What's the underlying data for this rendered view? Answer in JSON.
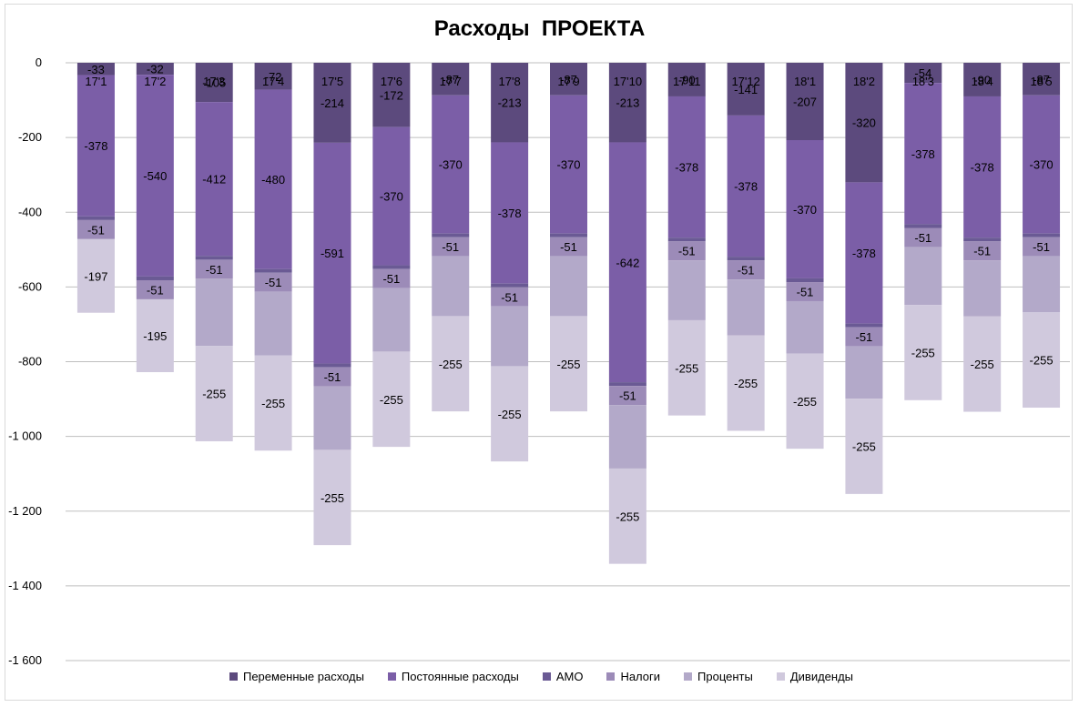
{
  "chart_data": {
    "type": "bar",
    "stacked": true,
    "title": "Расходы  ПРОЕКТА",
    "xlabel": "",
    "ylabel": "",
    "ylim": [
      -1600,
      0
    ],
    "yticks": [
      0,
      -200,
      -400,
      -600,
      -800,
      -1000,
      -1200,
      -1400,
      -1600
    ],
    "ytick_labels": [
      "0",
      "-200",
      "-400",
      "-600",
      "-800",
      "-1 000",
      "-1 200",
      "-1 400",
      "-1 600"
    ],
    "categories": [
      "17'1",
      "17'2",
      "17'3",
      "17'4",
      "17'5",
      "17'6",
      "17'7",
      "17'8",
      "17'9",
      "17'10",
      "17'11",
      "17'12",
      "18'1",
      "18'2",
      "18'3",
      "18'4",
      "18'5"
    ],
    "series": [
      {
        "name": "Переменные расходы",
        "color": "#5c4a7d",
        "values": [
          -33,
          -32,
          -105,
          -72,
          -214,
          -172,
          -87,
          -213,
          -87,
          -213,
          -90,
          -141,
          -207,
          -320,
          -54,
          -90,
          -87
        ]
      },
      {
        "name": "Постоянные расходы",
        "color": "#7b5ea7",
        "values": [
          -378,
          -540,
          -412,
          -480,
          -591,
          -370,
          -370,
          -378,
          -370,
          -642,
          -378,
          -378,
          -370,
          -378,
          -378,
          -378,
          -370
        ]
      },
      {
        "name": "АМО",
        "color": "#6a5a94",
        "values": [
          -10,
          -10,
          -10,
          -10,
          -10,
          -10,
          -10,
          -10,
          -10,
          -10,
          -10,
          -10,
          -10,
          -10,
          -10,
          -10,
          -10
        ]
      },
      {
        "name": "Налоги",
        "color": "#9c8bb8",
        "values": [
          -51,
          -51,
          -51,
          -51,
          -51,
          -51,
          -51,
          -51,
          -51,
          -51,
          -51,
          -51,
          -51,
          -51,
          -51,
          -51,
          -51
        ]
      },
      {
        "name": "Проценты",
        "color": "#b3a9c9",
        "values": [
          0,
          0,
          -180,
          -170,
          -170,
          -170,
          -160,
          -160,
          -160,
          -170,
          -160,
          -150,
          -140,
          -140,
          -155,
          -150,
          -150
        ]
      },
      {
        "name": "Дивиденды",
        "color": "#d0c9dd",
        "values": [
          -197,
          -195,
          -255,
          -255,
          -255,
          -255,
          -255,
          -255,
          -255,
          -255,
          -255,
          -255,
          -255,
          -255,
          -255,
          -255,
          -255
        ]
      }
    ],
    "data_labels": {
      "Переменные расходы": [
        "-33",
        "-32",
        "-105",
        "-72",
        "-214",
        "-172",
        "-87",
        "-213",
        "-87",
        "-213",
        "-90",
        "-141",
        "-207",
        "-320",
        "-54",
        "-90",
        "-87"
      ],
      "Постоянные расходы": [
        "-378",
        "-540",
        "-412",
        "-480",
        "-591",
        "-370",
        "-370",
        "-378",
        "-370",
        "-642",
        "-378",
        "-378",
        "-370",
        "-378",
        "-378",
        "-378",
        "-370"
      ],
      "Налоги": [
        "-51",
        "-51",
        "-51",
        "-51",
        "-51",
        "-51",
        "-51",
        "-51",
        "-51",
        "-51",
        "-51",
        "-51",
        "-51",
        "-51",
        "-51",
        "-51",
        "-51"
      ],
      "Дивиденды": [
        "-197",
        "-195",
        "-255",
        "-255",
        "-255",
        "-255",
        "-255",
        "-255",
        "-255",
        "-255",
        "-255",
        "-255",
        "-255",
        "-255",
        "-255",
        "-255",
        "-255"
      ]
    },
    "legend_position": "bottom",
    "grid": true
  }
}
